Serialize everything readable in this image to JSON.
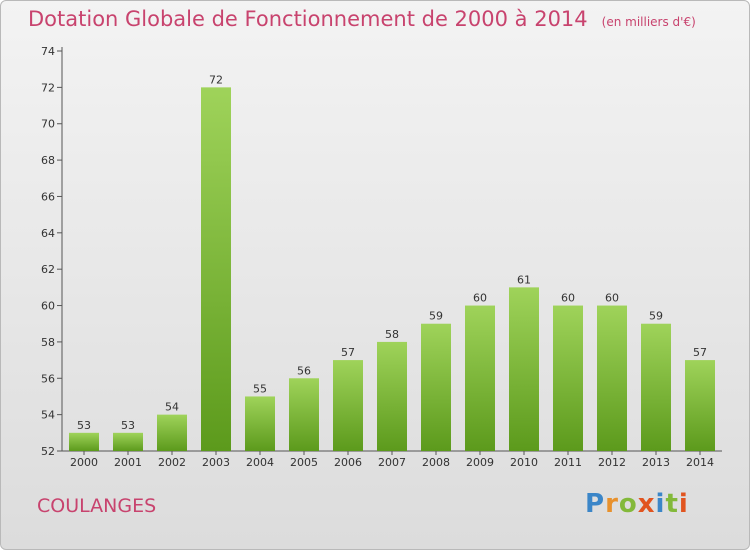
{
  "header": {
    "title": "Dotation Globale de Fonctionnement de 2000 à 2014",
    "unit": "(en milliers d'€)"
  },
  "footer": {
    "commune": "COULANGES",
    "logo_text": "Proxiti"
  },
  "colors": {
    "title": "#c8436e",
    "bar_top": "#9fd35a",
    "bar_bottom": "#5c9a1c",
    "axis": "#555555"
  },
  "chart_data": {
    "type": "bar",
    "title": "Dotation Globale de Fonctionnement de 2000 à 2014",
    "xlabel": "",
    "ylabel": "",
    "ylim": [
      52,
      74
    ],
    "yticks": [
      52,
      54,
      56,
      58,
      60,
      62,
      64,
      66,
      68,
      70,
      72,
      74
    ],
    "grid": false,
    "categories": [
      "2000",
      "2001",
      "2002",
      "2003",
      "2004",
      "2005",
      "2006",
      "2007",
      "2008",
      "2009",
      "2010",
      "2011",
      "2012",
      "2013",
      "2014"
    ],
    "values": [
      53,
      53,
      54,
      72,
      55,
      56,
      57,
      58,
      59,
      60,
      61,
      60,
      60,
      59,
      57
    ]
  }
}
